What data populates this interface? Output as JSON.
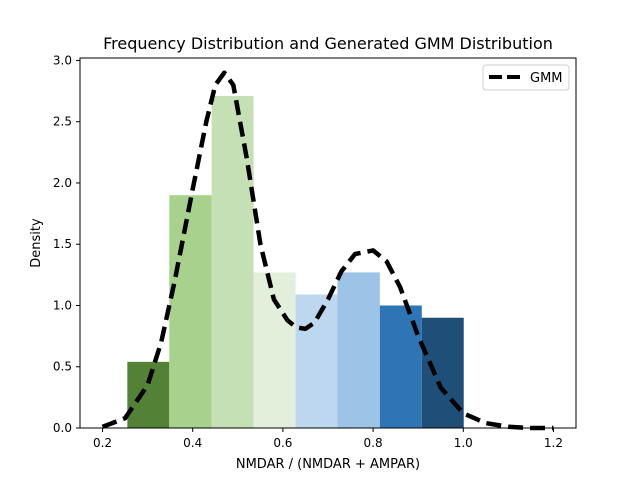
{
  "chart_data": {
    "type": "bar",
    "title": "Frequency Distribution and Generated GMM Distribution",
    "xlabel": "NMDAR / (NMDAR + AMPAR)",
    "ylabel": "Density",
    "xlim": [
      0.15,
      1.25
    ],
    "ylim": [
      0,
      3.02
    ],
    "xticks": [
      "0.2",
      "0.4",
      "0.6",
      "0.8",
      "1.0",
      "1.2"
    ],
    "yticks": [
      "0.0",
      "0.5",
      "1.0",
      "1.5",
      "2.0",
      "2.5",
      "3.0"
    ],
    "grid": false,
    "legend": {
      "position": "upper right",
      "entries": [
        "GMM"
      ]
    },
    "bars": [
      {
        "x0": 0.255,
        "x1": 0.348,
        "value": 0.54,
        "color": "#538135"
      },
      {
        "x0": 0.348,
        "x1": 0.442,
        "value": 1.9,
        "color": "#a9d18e"
      },
      {
        "x0": 0.442,
        "x1": 0.535,
        "value": 2.71,
        "color": "#c5e0b4"
      },
      {
        "x0": 0.535,
        "x1": 0.628,
        "value": 1.27,
        "color": "#e2efda"
      },
      {
        "x0": 0.628,
        "x1": 0.721,
        "value": 1.09,
        "color": "#bdd7ee"
      },
      {
        "x0": 0.721,
        "x1": 0.815,
        "value": 1.27,
        "color": "#9dc3e6"
      },
      {
        "x0": 0.815,
        "x1": 0.908,
        "value": 1.0,
        "color": "#2e75b6"
      },
      {
        "x0": 0.908,
        "x1": 1.001,
        "value": 0.9,
        "color": "#1f4e79"
      }
    ],
    "series": [
      {
        "name": "GMM",
        "type": "line",
        "style": "dashed",
        "color": "#000000",
        "x": [
          0.2,
          0.25,
          0.3,
          0.33,
          0.36,
          0.4,
          0.43,
          0.45,
          0.47,
          0.49,
          0.52,
          0.55,
          0.58,
          0.61,
          0.63,
          0.65,
          0.67,
          0.7,
          0.73,
          0.76,
          0.8,
          0.83,
          0.86,
          0.9,
          0.95,
          1.0,
          1.05,
          1.1,
          1.15,
          1.2
        ],
        "y": [
          0.01,
          0.08,
          0.35,
          0.7,
          1.2,
          1.95,
          2.5,
          2.8,
          2.9,
          2.8,
          2.2,
          1.5,
          1.05,
          0.88,
          0.82,
          0.81,
          0.86,
          1.05,
          1.28,
          1.42,
          1.45,
          1.36,
          1.15,
          0.75,
          0.33,
          0.12,
          0.04,
          0.01,
          0.0,
          0.0
        ]
      }
    ]
  }
}
